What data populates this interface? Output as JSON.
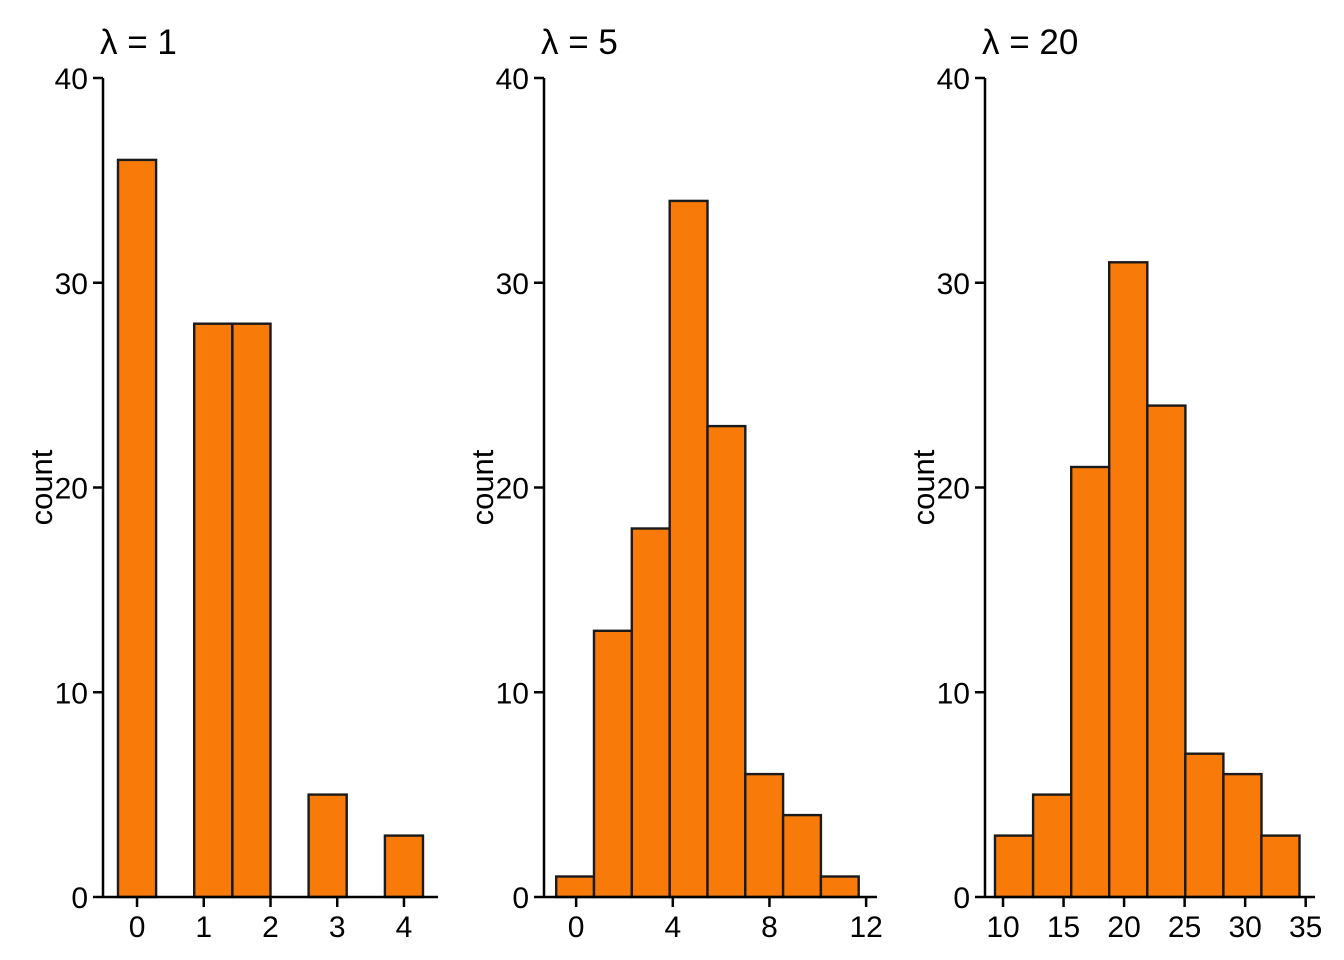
{
  "figure": {
    "description": "Three Poisson sample histograms",
    "background": "#ffffff"
  },
  "colors": {
    "bar_fill": "#F87B09",
    "bar_stroke": "#1a1a1a",
    "axis": "#000000",
    "text": "#000000"
  },
  "chart_data": [
    {
      "type": "bar",
      "subtype": "histogram",
      "title": "λ = 1",
      "xlabel": "",
      "ylabel": "count",
      "ylim": [
        0,
        40
      ],
      "yticks": [
        0,
        10,
        20,
        30,
        40
      ],
      "xticks": [
        0,
        1,
        2,
        3,
        4
      ],
      "xlim": [
        -0.51,
        4.51
      ],
      "bin_start": -0.2857,
      "bin_width": 0.5714,
      "counts": [
        36,
        0,
        28,
        28,
        0,
        5,
        0,
        3
      ],
      "grid": false,
      "legend": false,
      "n_total": 100
    },
    {
      "type": "bar",
      "subtype": "histogram",
      "title": "λ = 5",
      "xlabel": "",
      "ylabel": "count",
      "ylim": [
        0,
        40
      ],
      "yticks": [
        0,
        10,
        20,
        30,
        40
      ],
      "xticks": [
        0,
        4,
        8,
        12
      ],
      "xlim": [
        -1.33,
        12.45
      ],
      "bin_start": -0.826,
      "bin_width": 1.5652,
      "counts": [
        1,
        13,
        18,
        34,
        23,
        6,
        4,
        1
      ],
      "grid": false,
      "legend": false,
      "n_total": 100
    },
    {
      "type": "bar",
      "subtype": "histogram",
      "title": "λ = 20",
      "xlabel": "",
      "ylabel": "count",
      "ylim": [
        0,
        40
      ],
      "yticks": [
        0,
        10,
        20,
        30,
        40
      ],
      "xticks": [
        10,
        15,
        20,
        25,
        30,
        35
      ],
      "xlim": [
        8.51,
        35.77
      ],
      "bin_start": 9.34,
      "bin_width": 3.1435,
      "counts": [
        3,
        5,
        21,
        31,
        24,
        7,
        6,
        3
      ],
      "grid": false,
      "legend": false,
      "n_total": 100
    }
  ]
}
